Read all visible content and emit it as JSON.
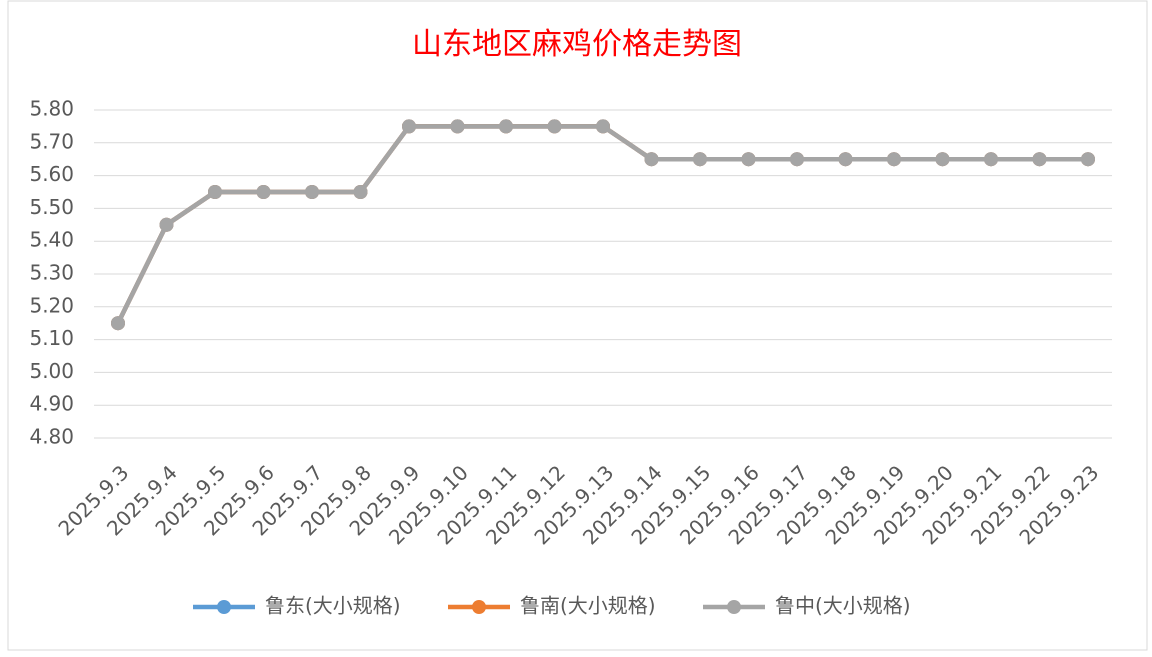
{
  "chart_data": {
    "type": "line",
    "title": "山东地区麻鸡价格走势图",
    "categories": [
      "2025.9.3",
      "2025.9.4",
      "2025.9.5",
      "2025.9.6",
      "2025.9.7",
      "2025.9.8",
      "2025.9.9",
      "2025.9.10",
      "2025.9.11",
      "2025.9.12",
      "2025.9.13",
      "2025.9.14",
      "2025.9.15",
      "2025.9.16",
      "2025.9.17",
      "2025.9.18",
      "2025.9.19",
      "2025.9.20",
      "2025.9.21",
      "2025.9.22",
      "2025.9.23"
    ],
    "series": [
      {
        "name": "鲁东(大小规格)",
        "color": "#5b9bd5",
        "values": [
          5.15,
          5.45,
          5.55,
          5.55,
          5.55,
          5.55,
          5.75,
          5.75,
          5.75,
          5.75,
          5.75,
          5.65,
          5.65,
          5.65,
          5.65,
          5.65,
          5.65,
          5.65,
          5.65,
          5.65,
          5.65
        ]
      },
      {
        "name": "鲁南(大小规格)",
        "color": "#ed7d31",
        "values": [
          5.15,
          5.45,
          5.55,
          5.55,
          5.55,
          5.55,
          5.75,
          5.75,
          5.75,
          5.75,
          5.75,
          5.65,
          5.65,
          5.65,
          5.65,
          5.65,
          5.65,
          5.65,
          5.65,
          5.65,
          5.65
        ]
      },
      {
        "name": "鲁中(大小规格)",
        "color": "#a5a5a5",
        "values": [
          5.15,
          5.45,
          5.55,
          5.55,
          5.55,
          5.55,
          5.75,
          5.75,
          5.75,
          5.75,
          5.75,
          5.65,
          5.65,
          5.65,
          5.65,
          5.65,
          5.65,
          5.65,
          5.65,
          5.65,
          5.65
        ]
      }
    ],
    "ylim": [
      4.8,
      5.8
    ],
    "yticks": [
      {
        "value": 4.8,
        "label": "4.80"
      },
      {
        "value": 4.9,
        "label": "4.90"
      },
      {
        "value": 5,
        "label": "5.00"
      },
      {
        "value": 5.1,
        "label": "5.10"
      },
      {
        "value": 5.2,
        "label": "5.20"
      },
      {
        "value": 5.3,
        "label": "5.30"
      },
      {
        "value": 5.4,
        "label": "5.40"
      },
      {
        "value": 5.5,
        "label": "5.50"
      },
      {
        "value": 5.6,
        "label": "5.60"
      },
      {
        "value": 5.7,
        "label": "5.70"
      },
      {
        "value": 5.8,
        "label": "5.80"
      }
    ],
    "grid": true,
    "legend": "bottom"
  }
}
